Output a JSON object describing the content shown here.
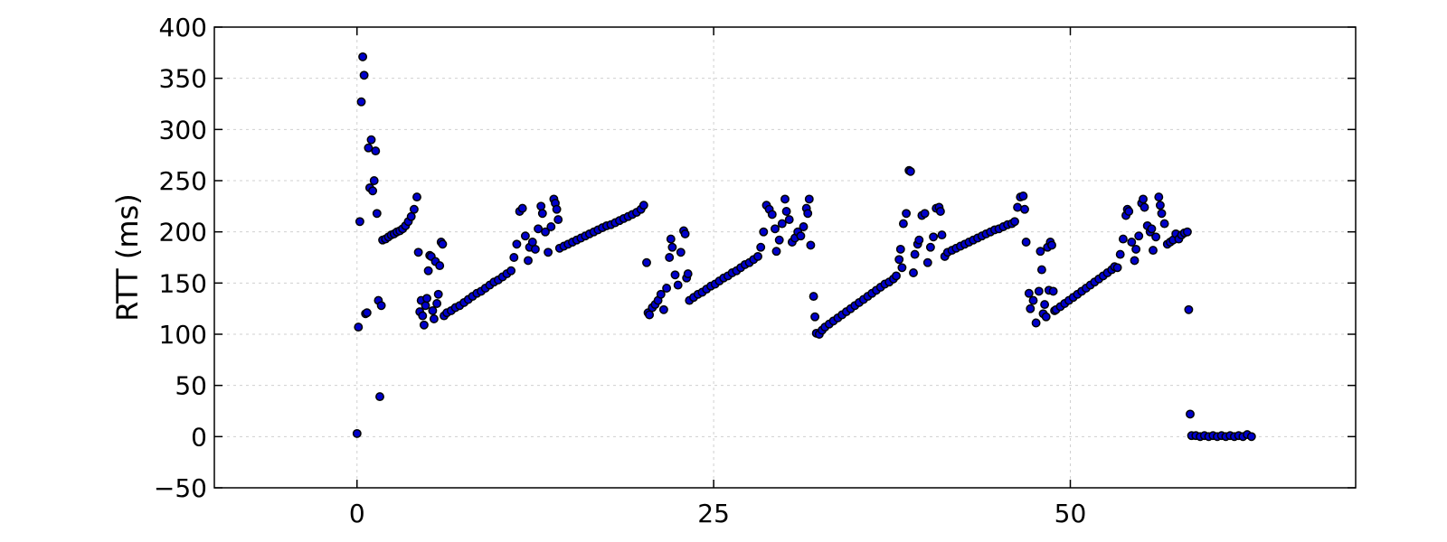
{
  "chart_data": {
    "type": "scatter",
    "title": "",
    "xlabel": "",
    "ylabel": "RTT (ms)",
    "xlim": [
      -10,
      70
    ],
    "ylim": [
      -50,
      400
    ],
    "xticks": [
      0,
      25,
      50
    ],
    "yticks": [
      -50,
      0,
      50,
      100,
      150,
      200,
      250,
      300,
      350,
      400
    ],
    "grid": true,
    "legend": "none",
    "marker_color": "#0000cc",
    "marker_edge_color": "#000000",
    "series": [
      {
        "points": [
          [
            0.0,
            3
          ],
          [
            0.1,
            107
          ],
          [
            0.2,
            210
          ],
          [
            0.3,
            327
          ],
          [
            0.4,
            371
          ],
          [
            0.5,
            353
          ],
          [
            0.6,
            120
          ],
          [
            0.7,
            121
          ],
          [
            0.8,
            282
          ],
          [
            0.9,
            243
          ],
          [
            1.0,
            290
          ],
          [
            1.1,
            240
          ],
          [
            1.2,
            250
          ],
          [
            1.3,
            279
          ],
          [
            1.4,
            218
          ],
          [
            1.5,
            133
          ],
          [
            1.6,
            39
          ],
          [
            1.7,
            128
          ],
          [
            1.8,
            192
          ],
          [
            2.0,
            193
          ],
          [
            2.2,
            195
          ],
          [
            2.4,
            197
          ],
          [
            2.6,
            198
          ],
          [
            2.8,
            200
          ],
          [
            3.0,
            201
          ],
          [
            3.2,
            203
          ],
          [
            3.4,
            206
          ],
          [
            3.6,
            210
          ],
          [
            3.8,
            215
          ],
          [
            4.0,
            222
          ],
          [
            4.2,
            234
          ],
          [
            4.3,
            180
          ],
          [
            4.4,
            122
          ],
          [
            4.5,
            133
          ],
          [
            4.6,
            118
          ],
          [
            4.7,
            109
          ],
          [
            4.8,
            128
          ],
          [
            4.9,
            135
          ],
          [
            5.0,
            162
          ],
          [
            5.1,
            177
          ],
          [
            5.2,
            176
          ],
          [
            5.3,
            123
          ],
          [
            5.4,
            115
          ],
          [
            5.5,
            171
          ],
          [
            5.6,
            130
          ],
          [
            5.7,
            139
          ],
          [
            5.8,
            167
          ],
          [
            5.9,
            190
          ],
          [
            6.0,
            188
          ],
          [
            6.1,
            118
          ],
          [
            6.3,
            121
          ],
          [
            6.6,
            123
          ],
          [
            6.9,
            126
          ],
          [
            7.2,
            128
          ],
          [
            7.5,
            131
          ],
          [
            7.8,
            134
          ],
          [
            8.1,
            137
          ],
          [
            8.4,
            140
          ],
          [
            8.7,
            142
          ],
          [
            9.0,
            145
          ],
          [
            9.3,
            148
          ],
          [
            9.6,
            151
          ],
          [
            9.9,
            153
          ],
          [
            10.2,
            156
          ],
          [
            10.5,
            159
          ],
          [
            10.8,
            162
          ],
          [
            11.0,
            175
          ],
          [
            11.2,
            188
          ],
          [
            11.4,
            220
          ],
          [
            11.6,
            223
          ],
          [
            11.8,
            196
          ],
          [
            12.0,
            172
          ],
          [
            12.1,
            185
          ],
          [
            12.3,
            190
          ],
          [
            12.5,
            183
          ],
          [
            12.7,
            203
          ],
          [
            12.9,
            225
          ],
          [
            13.0,
            218
          ],
          [
            13.2,
            200
          ],
          [
            13.4,
            180
          ],
          [
            13.6,
            205
          ],
          [
            13.8,
            232
          ],
          [
            13.9,
            228
          ],
          [
            14.0,
            222
          ],
          [
            14.1,
            212
          ],
          [
            14.2,
            184
          ],
          [
            14.5,
            186
          ],
          [
            14.8,
            188
          ],
          [
            15.1,
            190
          ],
          [
            15.4,
            192
          ],
          [
            15.7,
            194
          ],
          [
            16.0,
            196
          ],
          [
            16.3,
            198
          ],
          [
            16.6,
            200
          ],
          [
            16.9,
            202
          ],
          [
            17.2,
            204
          ],
          [
            17.5,
            206
          ],
          [
            17.8,
            207
          ],
          [
            18.1,
            209
          ],
          [
            18.4,
            211
          ],
          [
            18.7,
            213
          ],
          [
            19.0,
            215
          ],
          [
            19.3,
            217
          ],
          [
            19.6,
            219
          ],
          [
            19.9,
            222
          ],
          [
            20.1,
            226
          ],
          [
            20.3,
            170
          ],
          [
            20.4,
            121
          ],
          [
            20.5,
            119
          ],
          [
            20.7,
            126
          ],
          [
            20.9,
            129
          ],
          [
            21.1,
            133
          ],
          [
            21.3,
            139
          ],
          [
            21.5,
            124
          ],
          [
            21.7,
            145
          ],
          [
            21.9,
            175
          ],
          [
            22.0,
            193
          ],
          [
            22.1,
            185
          ],
          [
            22.3,
            158
          ],
          [
            22.5,
            148
          ],
          [
            22.7,
            180
          ],
          [
            22.9,
            201
          ],
          [
            23.0,
            198
          ],
          [
            23.1,
            155
          ],
          [
            23.2,
            159
          ],
          [
            23.3,
            133
          ],
          [
            23.6,
            136
          ],
          [
            23.9,
            139
          ],
          [
            24.2,
            141
          ],
          [
            24.5,
            144
          ],
          [
            24.8,
            147
          ],
          [
            25.1,
            149
          ],
          [
            25.4,
            152
          ],
          [
            25.7,
            155
          ],
          [
            26.0,
            157
          ],
          [
            26.3,
            160
          ],
          [
            26.6,
            162
          ],
          [
            26.9,
            165
          ],
          [
            27.2,
            168
          ],
          [
            27.5,
            170
          ],
          [
            27.8,
            173
          ],
          [
            28.1,
            176
          ],
          [
            28.3,
            185
          ],
          [
            28.5,
            200
          ],
          [
            28.7,
            226
          ],
          [
            28.9,
            222
          ],
          [
            29.1,
            217
          ],
          [
            29.3,
            203
          ],
          [
            29.4,
            181
          ],
          [
            29.6,
            192
          ],
          [
            29.8,
            208
          ],
          [
            30.0,
            232
          ],
          [
            30.1,
            220
          ],
          [
            30.3,
            212
          ],
          [
            30.5,
            190
          ],
          [
            30.7,
            194
          ],
          [
            30.9,
            200
          ],
          [
            31.1,
            196
          ],
          [
            31.3,
            205
          ],
          [
            31.5,
            223
          ],
          [
            31.6,
            218
          ],
          [
            31.7,
            232
          ],
          [
            31.8,
            187
          ],
          [
            32.0,
            137
          ],
          [
            32.1,
            117
          ],
          [
            32.2,
            101
          ],
          [
            32.4,
            100
          ],
          [
            32.6,
            104
          ],
          [
            32.8,
            107
          ],
          [
            33.1,
            110
          ],
          [
            33.4,
            113
          ],
          [
            33.7,
            116
          ],
          [
            34.0,
            119
          ],
          [
            34.3,
            122
          ],
          [
            34.6,
            125
          ],
          [
            34.9,
            128
          ],
          [
            35.2,
            131
          ],
          [
            35.5,
            134
          ],
          [
            35.8,
            137
          ],
          [
            36.1,
            140
          ],
          [
            36.4,
            143
          ],
          [
            36.7,
            146
          ],
          [
            37.0,
            149
          ],
          [
            37.3,
            151
          ],
          [
            37.6,
            154
          ],
          [
            37.8,
            157
          ],
          [
            38.0,
            173
          ],
          [
            38.1,
            183
          ],
          [
            38.2,
            165
          ],
          [
            38.3,
            208
          ],
          [
            38.5,
            218
          ],
          [
            38.7,
            260
          ],
          [
            38.8,
            259
          ],
          [
            39.0,
            160
          ],
          [
            39.1,
            178
          ],
          [
            39.3,
            188
          ],
          [
            39.4,
            192
          ],
          [
            39.6,
            216
          ],
          [
            39.8,
            218
          ],
          [
            40.0,
            170
          ],
          [
            40.2,
            185
          ],
          [
            40.4,
            195
          ],
          [
            40.6,
            223
          ],
          [
            40.8,
            224
          ],
          [
            40.9,
            220
          ],
          [
            41.0,
            197
          ],
          [
            41.2,
            176
          ],
          [
            41.4,
            180
          ],
          [
            41.7,
            182
          ],
          [
            42.0,
            184
          ],
          [
            42.3,
            186
          ],
          [
            42.6,
            188
          ],
          [
            42.9,
            190
          ],
          [
            43.2,
            192
          ],
          [
            43.5,
            194
          ],
          [
            43.8,
            196
          ],
          [
            44.1,
            198
          ],
          [
            44.4,
            200
          ],
          [
            44.7,
            202
          ],
          [
            45.0,
            203
          ],
          [
            45.3,
            205
          ],
          [
            45.6,
            207
          ],
          [
            45.9,
            208
          ],
          [
            46.1,
            210
          ],
          [
            46.3,
            224
          ],
          [
            46.5,
            234
          ],
          [
            46.7,
            235
          ],
          [
            46.8,
            222
          ],
          [
            46.9,
            190
          ],
          [
            47.1,
            140
          ],
          [
            47.2,
            125
          ],
          [
            47.4,
            133
          ],
          [
            47.6,
            111
          ],
          [
            47.8,
            142
          ],
          [
            47.9,
            181
          ],
          [
            48.0,
            163
          ],
          [
            48.1,
            120
          ],
          [
            48.2,
            129
          ],
          [
            48.3,
            117
          ],
          [
            48.4,
            185
          ],
          [
            48.5,
            143
          ],
          [
            48.6,
            190
          ],
          [
            48.7,
            187
          ],
          [
            48.8,
            142
          ],
          [
            48.9,
            123
          ],
          [
            49.0,
            124
          ],
          [
            49.3,
            127
          ],
          [
            49.6,
            130
          ],
          [
            49.9,
            133
          ],
          [
            50.2,
            136
          ],
          [
            50.5,
            139
          ],
          [
            50.8,
            142
          ],
          [
            51.1,
            145
          ],
          [
            51.4,
            148
          ],
          [
            51.7,
            151
          ],
          [
            52.0,
            154
          ],
          [
            52.3,
            157
          ],
          [
            52.6,
            160
          ],
          [
            52.9,
            163
          ],
          [
            53.1,
            166
          ],
          [
            53.3,
            165
          ],
          [
            53.5,
            178
          ],
          [
            53.7,
            193
          ],
          [
            53.9,
            216
          ],
          [
            54.0,
            222
          ],
          [
            54.1,
            220
          ],
          [
            54.3,
            190
          ],
          [
            54.5,
            172
          ],
          [
            54.6,
            183
          ],
          [
            54.8,
            196
          ],
          [
            55.0,
            228
          ],
          [
            55.1,
            232
          ],
          [
            55.2,
            224
          ],
          [
            55.4,
            206
          ],
          [
            55.6,
            200
          ],
          [
            55.7,
            203
          ],
          [
            55.8,
            182
          ],
          [
            56.0,
            195
          ],
          [
            56.2,
            234
          ],
          [
            56.3,
            226
          ],
          [
            56.4,
            218
          ],
          [
            56.6,
            208
          ],
          [
            56.8,
            188
          ],
          [
            57.0,
            190
          ],
          [
            57.2,
            192
          ],
          [
            57.4,
            198
          ],
          [
            57.6,
            193
          ],
          [
            57.8,
            197
          ],
          [
            58.0,
            199
          ],
          [
            58.2,
            200
          ],
          [
            58.3,
            124
          ],
          [
            58.4,
            22
          ],
          [
            58.5,
            1
          ],
          [
            58.8,
            1
          ],
          [
            59.1,
            0
          ],
          [
            59.4,
            1
          ],
          [
            59.7,
            0
          ],
          [
            60.0,
            1
          ],
          [
            60.3,
            0
          ],
          [
            60.6,
            1
          ],
          [
            60.9,
            0
          ],
          [
            61.2,
            1
          ],
          [
            61.5,
            0
          ],
          [
            61.8,
            1
          ],
          [
            62.1,
            0
          ],
          [
            62.4,
            2
          ],
          [
            62.7,
            0
          ]
        ]
      }
    ]
  }
}
